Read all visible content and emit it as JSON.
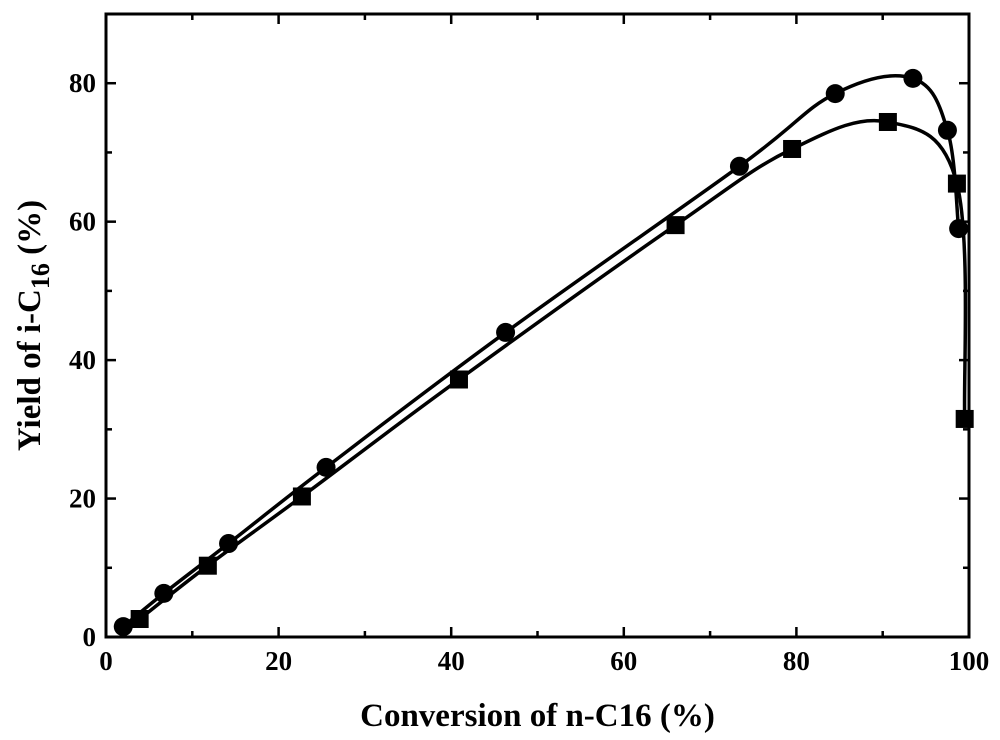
{
  "chart_data": {
    "type": "scatter",
    "title": "",
    "xlabel": "Conversion of n-C16 (%)",
    "ylabel": {
      "prefix": "Yield of i-C",
      "subscript": "16",
      "suffix": " (%)"
    },
    "xlim": [
      0,
      100
    ],
    "ylim": [
      0,
      90
    ],
    "xticks": [
      "0",
      "20",
      "40",
      "60",
      "80",
      "100"
    ],
    "yticks": [
      "0",
      "20",
      "40",
      "60",
      "80"
    ],
    "grid": false,
    "legend": "none",
    "series": [
      {
        "marker": "circle",
        "color": "#000000",
        "x": [
          2.0,
          6.7,
          14.2,
          25.5,
          46.3,
          73.4,
          84.5,
          93.5,
          97.5,
          98.8
        ],
        "y": [
          1.5,
          6.3,
          13.5,
          24.5,
          44.0,
          68.0,
          78.5,
          80.7,
          73.2,
          59.0
        ]
      },
      {
        "marker": "square",
        "color": "#000000",
        "x": [
          3.9,
          11.8,
          22.7,
          40.9,
          66.0,
          79.5,
          90.6,
          98.6,
          99.5
        ],
        "y": [
          2.6,
          10.3,
          20.3,
          37.2,
          59.5,
          70.5,
          74.4,
          65.5,
          31.5
        ]
      }
    ]
  }
}
